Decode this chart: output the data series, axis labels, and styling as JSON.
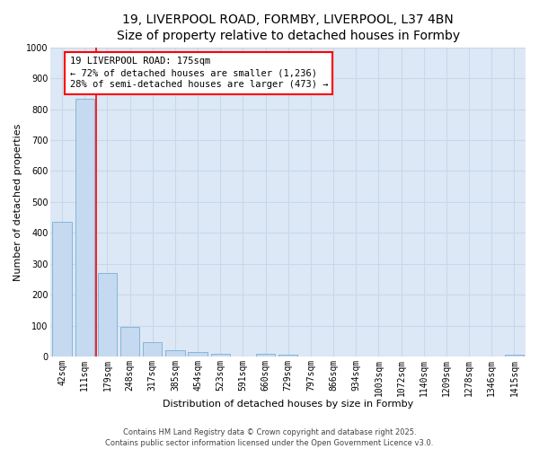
{
  "title_line1": "19, LIVERPOOL ROAD, FORMBY, LIVERPOOL, L37 4BN",
  "title_line2": "Size of property relative to detached houses in Formby",
  "xlabel": "Distribution of detached houses by size in Formby",
  "ylabel": "Number of detached properties",
  "bar_labels": [
    "42sqm",
    "111sqm",
    "179sqm",
    "248sqm",
    "317sqm",
    "385sqm",
    "454sqm",
    "523sqm",
    "591sqm",
    "660sqm",
    "729sqm",
    "797sqm",
    "866sqm",
    "934sqm",
    "1003sqm",
    "1072sqm",
    "1140sqm",
    "1209sqm",
    "1278sqm",
    "1346sqm",
    "1415sqm"
  ],
  "bar_values": [
    435,
    835,
    270,
    95,
    45,
    20,
    15,
    8,
    0,
    8,
    5,
    0,
    0,
    0,
    0,
    0,
    0,
    0,
    0,
    0,
    5
  ],
  "bar_color": "#c5d9f0",
  "bar_edgecolor": "#7aafd4",
  "ylim": [
    0,
    1000
  ],
  "yticks": [
    0,
    100,
    200,
    300,
    400,
    500,
    600,
    700,
    800,
    900,
    1000
  ],
  "grid_color": "#c8d8ea",
  "background_color": "#dce8f5",
  "red_line_x": 1.5,
  "annotation_line1": "19 LIVERPOOL ROAD: 175sqm",
  "annotation_line2": "← 72% of detached houses are smaller (1,236)",
  "annotation_line3": "28% of semi-detached houses are larger (473) →",
  "footer_line1": "Contains HM Land Registry data © Crown copyright and database right 2025.",
  "footer_line2": "Contains public sector information licensed under the Open Government Licence v3.0.",
  "title_fontsize": 10,
  "title2_fontsize": 9.5,
  "axis_label_fontsize": 8,
  "tick_fontsize": 7,
  "annotation_fontsize": 7.5,
  "footer_fontsize": 6
}
